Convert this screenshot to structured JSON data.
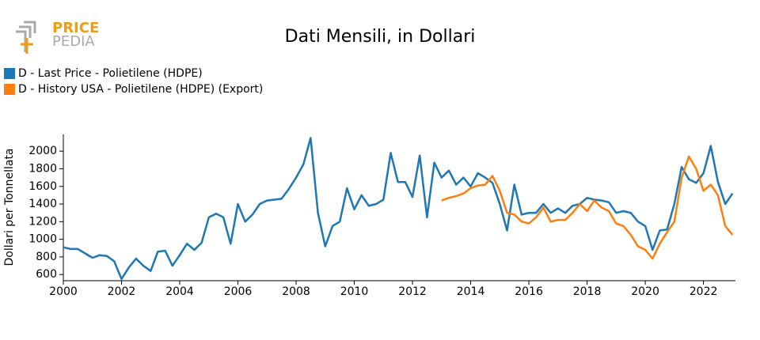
{
  "chart_data": {
    "type": "line",
    "logo_text": "PRICE",
    "logo_subtext": "PEDIA",
    "title": "Dati Mensili, in Dollari",
    "y_label": "Dollari per Tonnellata",
    "legend": "top-left",
    "grid": false,
    "xlim": [
      2000,
      2023.1
    ],
    "xticks": [
      2000,
      2002,
      2004,
      2006,
      2008,
      2010,
      2012,
      2014,
      2016,
      2018,
      2020,
      2022
    ],
    "ylim": [
      530,
      2190
    ],
    "yticks": [
      600,
      800,
      1000,
      1200,
      1400,
      1600,
      1800,
      2000
    ],
    "x": [
      2000,
      2000.25,
      2000.5,
      2000.75,
      2001,
      2001.25,
      2001.5,
      2001.75,
      2002,
      2002.25,
      2002.5,
      2002.75,
      2003,
      2003.25,
      2003.5,
      2003.75,
      2004,
      2004.25,
      2004.5,
      2004.75,
      2005,
      2005.25,
      2005.5,
      2005.75,
      2006,
      2006.25,
      2006.5,
      2006.75,
      2007,
      2007.25,
      2007.5,
      2007.75,
      2008,
      2008.25,
      2008.5,
      2008.75,
      2009,
      2009.25,
      2009.5,
      2009.75,
      2010,
      2010.25,
      2010.5,
      2010.75,
      2011,
      2011.25,
      2011.5,
      2011.75,
      2012,
      2012.25,
      2012.5,
      2012.75,
      2013,
      2013.25,
      2013.5,
      2013.75,
      2014,
      2014.25,
      2014.5,
      2014.75,
      2015,
      2015.25,
      2015.5,
      2015.75,
      2016,
      2016.25,
      2016.5,
      2016.75,
      2017,
      2017.25,
      2017.5,
      2017.75,
      2018,
      2018.25,
      2018.5,
      2018.75,
      2019,
      2019.25,
      2019.5,
      2019.75,
      2020,
      2020.25,
      2020.5,
      2020.75,
      2021,
      2021.25,
      2021.5,
      2021.75,
      2022,
      2022.25,
      2022.5,
      2022.75,
      2023
    ],
    "series": [
      {
        "name": "D - Last Price - Polietilene (HDPE)",
        "color": "#1f77b4",
        "values": [
          910,
          890,
          890,
          840,
          790,
          820,
          810,
          750,
          550,
          680,
          780,
          700,
          640,
          860,
          870,
          700,
          820,
          950,
          880,
          960,
          1250,
          1290,
          1250,
          950,
          1400,
          1200,
          1280,
          1400,
          1440,
          1450,
          1460,
          1570,
          1700,
          1850,
          2150,
          1300,
          920,
          1150,
          1200,
          1580,
          1340,
          1500,
          1380,
          1400,
          1450,
          1980,
          1650,
          1650,
          1480,
          1950,
          1250,
          1870,
          1700,
          1780,
          1620,
          1700,
          1600,
          1750,
          1700,
          1640,
          1400,
          1100,
          1620,
          1280,
          1300,
          1300,
          1400,
          1300,
          1350,
          1300,
          1380,
          1400,
          1470,
          1450,
          1440,
          1420,
          1300,
          1320,
          1300,
          1200,
          1150,
          880,
          1100,
          1110,
          1400,
          1820,
          1680,
          1640,
          1750,
          2060,
          1650,
          1400,
          1520
        ]
      },
      {
        "name": "D - History USA - Polietilene (HDPE) (Export)",
        "color": "#ff7f0e",
        "values": [
          null,
          null,
          null,
          null,
          null,
          null,
          null,
          null,
          null,
          null,
          null,
          null,
          null,
          null,
          null,
          null,
          null,
          null,
          null,
          null,
          null,
          null,
          null,
          null,
          null,
          null,
          null,
          null,
          null,
          null,
          null,
          null,
          null,
          null,
          null,
          null,
          null,
          null,
          null,
          null,
          null,
          null,
          null,
          null,
          null,
          null,
          null,
          null,
          null,
          null,
          null,
          null,
          1440,
          1470,
          1490,
          1520,
          1580,
          1610,
          1620,
          1720,
          1550,
          1300,
          1280,
          1200,
          1180,
          1250,
          1360,
          1200,
          1220,
          1220,
          1300,
          1400,
          1320,
          1440,
          1360,
          1320,
          1180,
          1150,
          1050,
          920,
          880,
          780,
          950,
          1080,
          1200,
          1700,
          1940,
          1800,
          1550,
          1620,
          1500,
          1150,
          1050
        ]
      }
    ]
  }
}
